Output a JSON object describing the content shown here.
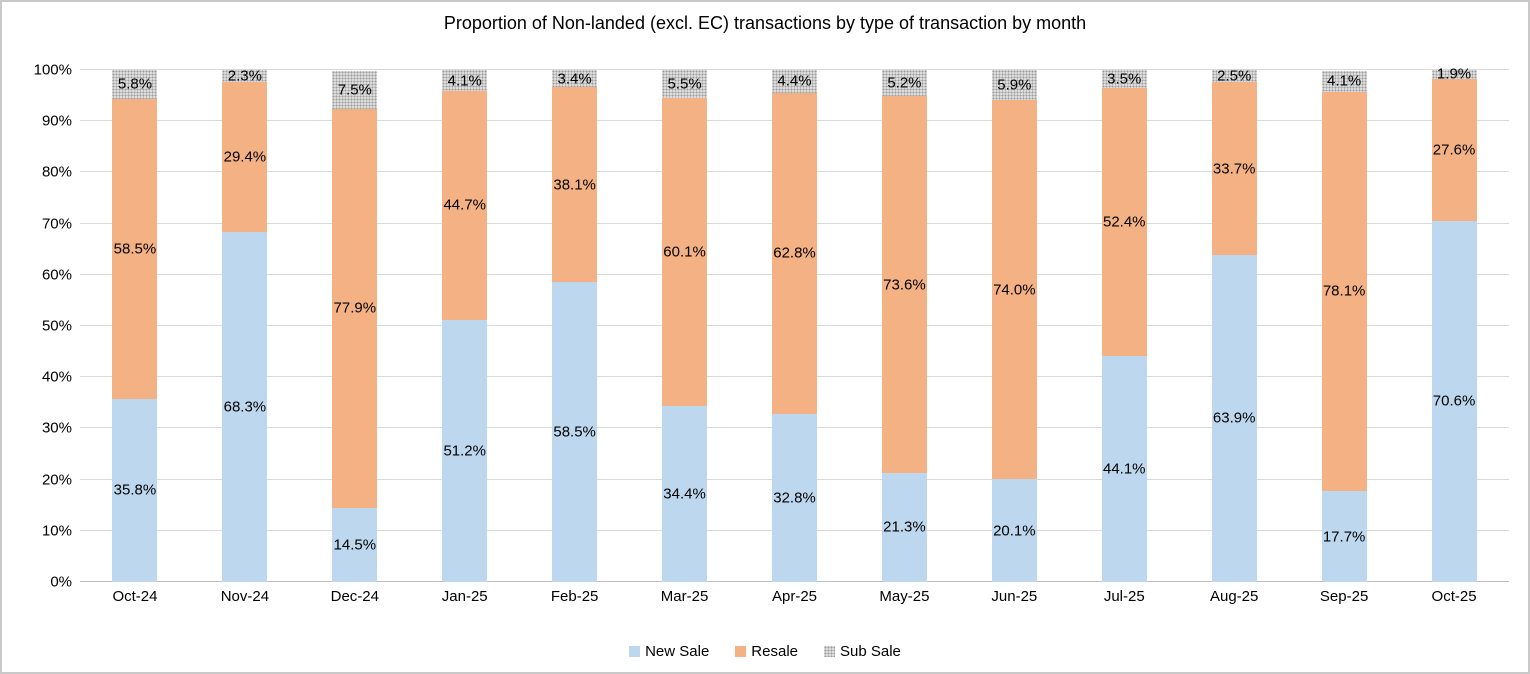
{
  "chart_data": {
    "type": "bar",
    "stacked": true,
    "title": "Proportion of Non-landed (excl. EC) transactions by type of transaction by month",
    "categories": [
      "Oct-24",
      "Nov-24",
      "Dec-24",
      "Jan-25",
      "Feb-25",
      "Mar-25",
      "Apr-25",
      "May-25",
      "Jun-25",
      "Jul-25",
      "Aug-25",
      "Sep-25",
      "Oct-25"
    ],
    "series": [
      {
        "name": "New Sale",
        "color": "#BDD7EE",
        "pattern": "solid",
        "values": [
          35.8,
          68.3,
          14.5,
          51.2,
          58.5,
          34.4,
          32.8,
          21.3,
          20.1,
          44.1,
          63.9,
          17.7,
          70.6
        ]
      },
      {
        "name": "Resale",
        "color": "#F4B183",
        "pattern": "solid",
        "values": [
          58.5,
          29.4,
          77.9,
          44.7,
          38.1,
          60.1,
          62.8,
          73.6,
          74.0,
          52.4,
          33.7,
          78.1,
          27.6
        ]
      },
      {
        "name": "Sub Sale",
        "color": "#DCDCDC",
        "pattern": "dots",
        "values": [
          5.8,
          2.3,
          7.5,
          4.1,
          3.4,
          5.5,
          4.4,
          5.2,
          5.9,
          3.5,
          2.5,
          4.1,
          1.9
        ]
      }
    ],
    "xlabel": "",
    "ylabel": "",
    "ylim": [
      0,
      100
    ],
    "ytick_step": 10,
    "ytick_suffix": "%",
    "grid": true,
    "gridline_color": "#D9D9D9",
    "data_labels": true,
    "data_label_format": "one-decimal-percent",
    "legend_position": "bottom"
  }
}
